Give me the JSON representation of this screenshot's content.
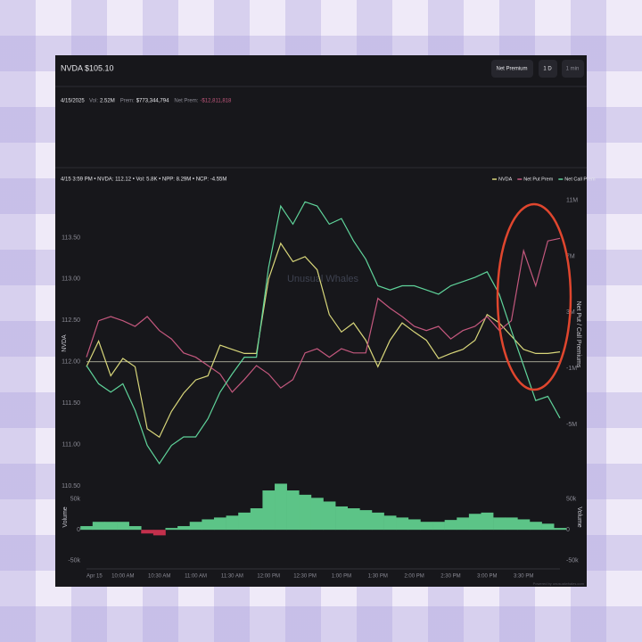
{
  "header": {
    "ticker": "NVDA",
    "price": "$105.10",
    "controls": [
      "Net Premium",
      "1 D",
      "1 min"
    ]
  },
  "summary": {
    "date": "4/15/2025",
    "items": [
      {
        "label": "Vol:",
        "value": "2.52M"
      },
      {
        "label": "Prem:",
        "value": "$773,344,794"
      },
      {
        "label": "Net Prem:",
        "value": "-$12,811,818"
      }
    ]
  },
  "hover": "4/15 3:59 PM • NVDA: 112.12 • Vol: 5.8K • NPP: 8.29M • NCP: -4.55M",
  "watermark": "Unusual Whales",
  "footer": "Powered by unusualwhales.com",
  "chart_data": [
    {
      "type": "line",
      "categories": [
        "Apr 15",
        null,
        null,
        "10:00 AM",
        null,
        null,
        "10:30 AM",
        null,
        null,
        "11:00 AM",
        null,
        null,
        "11:30 AM",
        null,
        null,
        "12:00 PM",
        null,
        null,
        "12:30 PM",
        null,
        null,
        "1:00 PM",
        null,
        null,
        "1:30 PM",
        null,
        null,
        "2:00 PM",
        null,
        null,
        "2:30 PM",
        null,
        null,
        "3:00 PM",
        null,
        null,
        "3:30 PM",
        null,
        null,
        null
      ],
      "series": [
        {
          "name": "NVDA",
          "color": "#d8d67a",
          "axis": "y",
          "values": [
            111.94,
            112.25,
            111.83,
            112.04,
            111.94,
            111.19,
            111.09,
            111.4,
            111.62,
            111.78,
            111.83,
            112.2,
            112.15,
            112.1,
            112.1,
            113.0,
            113.43,
            113.21,
            113.27,
            113.11,
            112.57,
            112.36,
            112.47,
            112.26,
            111.94,
            112.26,
            112.47,
            112.36,
            112.26,
            112.04,
            112.1,
            112.15,
            112.26,
            112.57,
            112.47,
            112.31,
            112.15,
            112.1,
            112.1,
            112.12
          ]
        },
        {
          "name": "Net Put Prem",
          "color": "#c4587e",
          "axis": "y2",
          "values": [
            -0.2,
            2.4,
            2.7,
            2.4,
            2.0,
            2.7,
            1.7,
            1.1,
            0.1,
            -0.2,
            -0.8,
            -1.4,
            -2.7,
            -1.8,
            -0.8,
            -1.4,
            -2.4,
            -1.8,
            0.1,
            0.4,
            -0.2,
            0.4,
            0.1,
            0.1,
            4.0,
            3.3,
            2.7,
            2.0,
            1.7,
            2.0,
            1.1,
            1.7,
            2.0,
            2.7,
            1.7,
            2.4,
            7.4,
            4.9,
            8.1,
            8.29
          ]
        },
        {
          "name": "Net Call Prem",
          "color": "#5fd39a",
          "axis": "y2",
          "values": [
            -0.8,
            -2.1,
            -2.7,
            -2.1,
            -4.0,
            -6.5,
            -7.8,
            -6.5,
            -5.9,
            -5.9,
            -4.6,
            -2.7,
            -1.4,
            -0.2,
            -0.2,
            6.2,
            10.6,
            9.3,
            10.9,
            10.6,
            9.3,
            9.7,
            8.1,
            6.8,
            4.9,
            4.6,
            4.9,
            4.9,
            4.6,
            4.3,
            4.9,
            5.2,
            5.5,
            5.9,
            4.3,
            1.7,
            -0.8,
            -3.3,
            -3.0,
            -4.55
          ]
        }
      ],
      "ylabel": "NVDA",
      "y2label": "Net Put / Call Premiums",
      "ylim": [
        110.5,
        114
      ],
      "yticks": [
        {
          "value": 110.5,
          "label": "110.50"
        },
        {
          "value": 111,
          "label": "111.00"
        },
        {
          "value": 111.5,
          "label": "111.50"
        },
        {
          "value": 112,
          "label": "112.00"
        },
        {
          "value": 112.5,
          "label": "112.50"
        },
        {
          "value": 113,
          "label": "113.00"
        },
        {
          "value": 113.5,
          "label": "113.50"
        }
      ],
      "y2lim": [
        -9.4,
        11.3
      ],
      "y2ticks": [
        {
          "value": -5,
          "label": "-5M"
        },
        {
          "value": -1,
          "label": "-1M"
        },
        {
          "value": 3,
          "label": "3M"
        },
        {
          "value": 7,
          "label": "7M"
        },
        {
          "value": 11,
          "label": "11M"
        }
      ],
      "reference_line": 112,
      "reference_color": "#cfcfb8",
      "grid": false,
      "legend": "top-right"
    },
    {
      "type": "bar",
      "ylabel": "Volume",
      "values": [
        6,
        13,
        13,
        13,
        6,
        -6,
        -9,
        3,
        6,
        13,
        17,
        20,
        23,
        28,
        35,
        64,
        75,
        64,
        57,
        52,
        46,
        38,
        35,
        32,
        28,
        23,
        20,
        17,
        13,
        13,
        16,
        20,
        26,
        28,
        20,
        20,
        17,
        13,
        10,
        3
      ],
      "color": "#5cc487",
      "negative_color": "#c3304c",
      "ylim": [
        -65,
        80
      ],
      "yticks": [
        {
          "value": -50,
          "label": "-50k"
        },
        0,
        {
          "value": 50,
          "label": "50k"
        }
      ]
    }
  ]
}
